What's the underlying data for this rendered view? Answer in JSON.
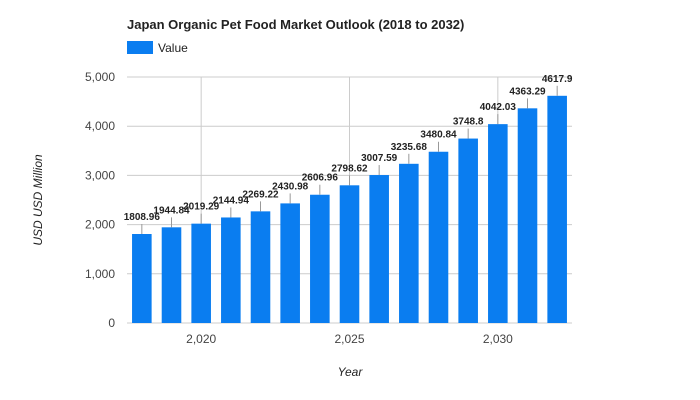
{
  "chart_data": {
    "type": "bar",
    "title": "Japan Organic Pet Food Market Outlook (2018 to 2032)",
    "xlabel": "Year",
    "ylabel": "USD USD Million",
    "series": [
      {
        "name": "Value",
        "color": "#0a7df0",
        "x": [
          2018,
          2019,
          2020,
          2021,
          2022,
          2023,
          2024,
          2025,
          2026,
          2027,
          2028,
          2029,
          2030,
          2031,
          2032
        ],
        "values": [
          1808.96,
          1944.84,
          2019.29,
          2144.94,
          2269.22,
          2430.98,
          2606.96,
          2798.62,
          3007.59,
          3235.68,
          3480.84,
          3748.8,
          4042.03,
          4363.29,
          4617.9
        ],
        "labels": [
          "1808.96",
          "1944.84",
          "2019.29",
          "2144.94",
          "2269.22",
          "2430.98",
          "2606.96",
          "2798.62",
          "3007.59",
          "3235.68",
          "3480.84",
          "3748.8",
          "4042.03",
          "4363.29",
          "4617.9"
        ]
      }
    ],
    "ylim": [
      0,
      5000
    ],
    "y_ticks": [
      0,
      1000,
      2000,
      3000,
      4000,
      5000
    ],
    "y_tick_labels": [
      "0",
      "1,000",
      "2,000",
      "3,000",
      "4,000",
      "5,000"
    ],
    "x_ticks": [
      2020,
      2025,
      2030
    ],
    "x_tick_labels": [
      "2,020",
      "2,025",
      "2,030"
    ],
    "grid": true,
    "legend_position": "top-left"
  }
}
